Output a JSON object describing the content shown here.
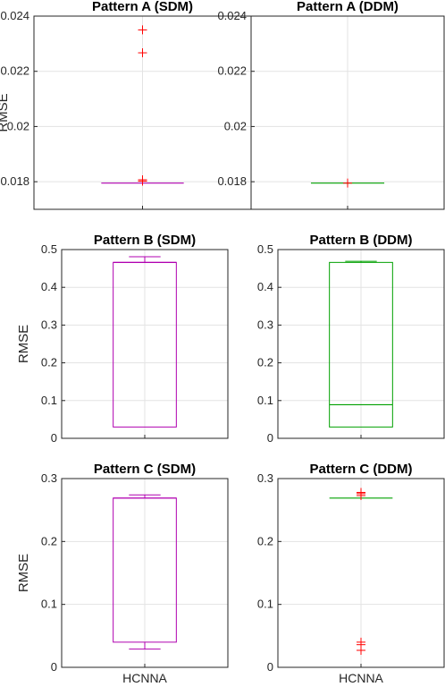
{
  "chart_data": [
    {
      "type": "box",
      "title": "Pattern A (SDM)",
      "ylabel": "RMSE",
      "xlabel": "",
      "ylim": [
        0.017,
        0.024
      ],
      "yticks": [
        0.018,
        0.02,
        0.022,
        0.024
      ],
      "ytick_labels": [
        "0.018",
        "0.02",
        "0.022",
        "0.024"
      ],
      "grid": true,
      "color": "#b000b0",
      "box": {
        "q1": 0.01795,
        "median": 0.01795,
        "q3": 0.01795,
        "whisker_low": 0.01795,
        "whisker_high": 0.01795
      },
      "outliers": [
        0.01802,
        0.01807,
        0.02267,
        0.0235
      ]
    },
    {
      "type": "box",
      "title": "Pattern A (DDM)",
      "ylabel": "",
      "xlabel": "",
      "ylim": [
        0.017,
        0.024
      ],
      "yticks": [
        0.018,
        0.02,
        0.022,
        0.024
      ],
      "ytick_labels": [
        "0.018",
        "0.02",
        "0.022",
        "0.024"
      ],
      "grid": true,
      "color": "#00a000",
      "box": {
        "q1": 0.01795,
        "median": 0.01795,
        "q3": 0.01795,
        "whisker_low": 0.01795,
        "whisker_high": 0.01795
      },
      "outliers": [
        0.01795
      ]
    },
    {
      "type": "box",
      "title": "Pattern B (SDM)",
      "ylabel": "RMSE",
      "xlabel": "",
      "ylim": [
        0,
        0.5
      ],
      "yticks": [
        0,
        0.1,
        0.2,
        0.3,
        0.4,
        0.5
      ],
      "ytick_labels": [
        "0",
        "0.1",
        "0.2",
        "0.3",
        "0.4",
        "0.5"
      ],
      "grid": true,
      "color": "#b000b0",
      "box": {
        "q1": 0.03,
        "median": 0.466,
        "q3": 0.466,
        "whisker_low": 0.03,
        "whisker_high": 0.481
      },
      "outliers": []
    },
    {
      "type": "box",
      "title": "Pattern B (DDM)",
      "ylabel": "",
      "xlabel": "",
      "ylim": [
        0,
        0.5
      ],
      "yticks": [
        0,
        0.1,
        0.2,
        0.3,
        0.4,
        0.5
      ],
      "ytick_labels": [
        "0",
        "0.1",
        "0.2",
        "0.3",
        "0.4",
        "0.5"
      ],
      "grid": true,
      "color": "#00a000",
      "box": {
        "q1": 0.03,
        "median": 0.089,
        "q3": 0.466,
        "whisker_low": 0.03,
        "whisker_high": 0.469
      },
      "outliers": []
    },
    {
      "type": "box",
      "title": "Pattern C (SDM)",
      "ylabel": "RMSE",
      "xlabel": "HCNNA",
      "ylim": [
        0,
        0.3
      ],
      "yticks": [
        0,
        0.1,
        0.2,
        0.3
      ],
      "ytick_labels": [
        "0",
        "0.1",
        "0.2",
        "0.3"
      ],
      "grid": true,
      "color": "#b000b0",
      "box": {
        "q1": 0.04,
        "median": 0.269,
        "q3": 0.269,
        "whisker_low": 0.029,
        "whisker_high": 0.274
      },
      "outliers": []
    },
    {
      "type": "box",
      "title": "Pattern C (DDM)",
      "ylabel": "",
      "xlabel": "HCNNA",
      "ylim": [
        0,
        0.3
      ],
      "yticks": [
        0,
        0.1,
        0.2,
        0.3
      ],
      "ytick_labels": [
        "0",
        "0.1",
        "0.2",
        "0.3"
      ],
      "grid": true,
      "color": "#00a000",
      "box": {
        "q1": 0.269,
        "median": 0.269,
        "q3": 0.269,
        "whisker_low": 0.269,
        "whisker_high": 0.269
      },
      "outliers": [
        0.027,
        0.036,
        0.04,
        0.273,
        0.276,
        0.278
      ]
    }
  ]
}
